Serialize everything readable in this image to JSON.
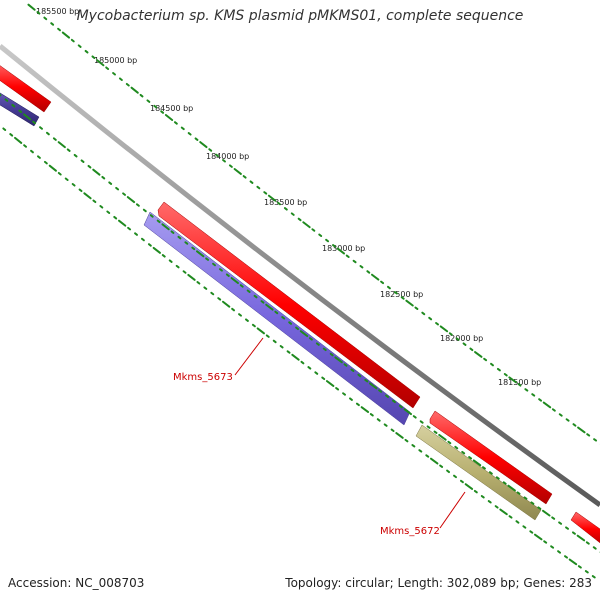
{
  "title": "Mycobacterium sp. KMS plasmid pMKMS01, complete sequence",
  "footer": {
    "accession": "Accession: NC_008703",
    "summary": "Topology: circular; Length: 302,089 bp; Genes: 283"
  },
  "scale_labels": [
    "185500 bp",
    "185000 bp",
    "184500 bp",
    "184000 bp",
    "183500 bp",
    "183000 bp",
    "182500 bp",
    "182000 bp",
    "181500 bp"
  ],
  "gene_labels": [
    "Mkms_5673",
    "Mkms_5672"
  ],
  "colors": {
    "backbone": "#808080",
    "forward_gene": "#ff0000",
    "reverse_gene_blue": "#7766dd",
    "reverse_gene_dark": "#4a3f99",
    "reverse_gene_olive": "#b8b070",
    "tick": "#1f8a1f",
    "label": "#cc0000"
  }
}
